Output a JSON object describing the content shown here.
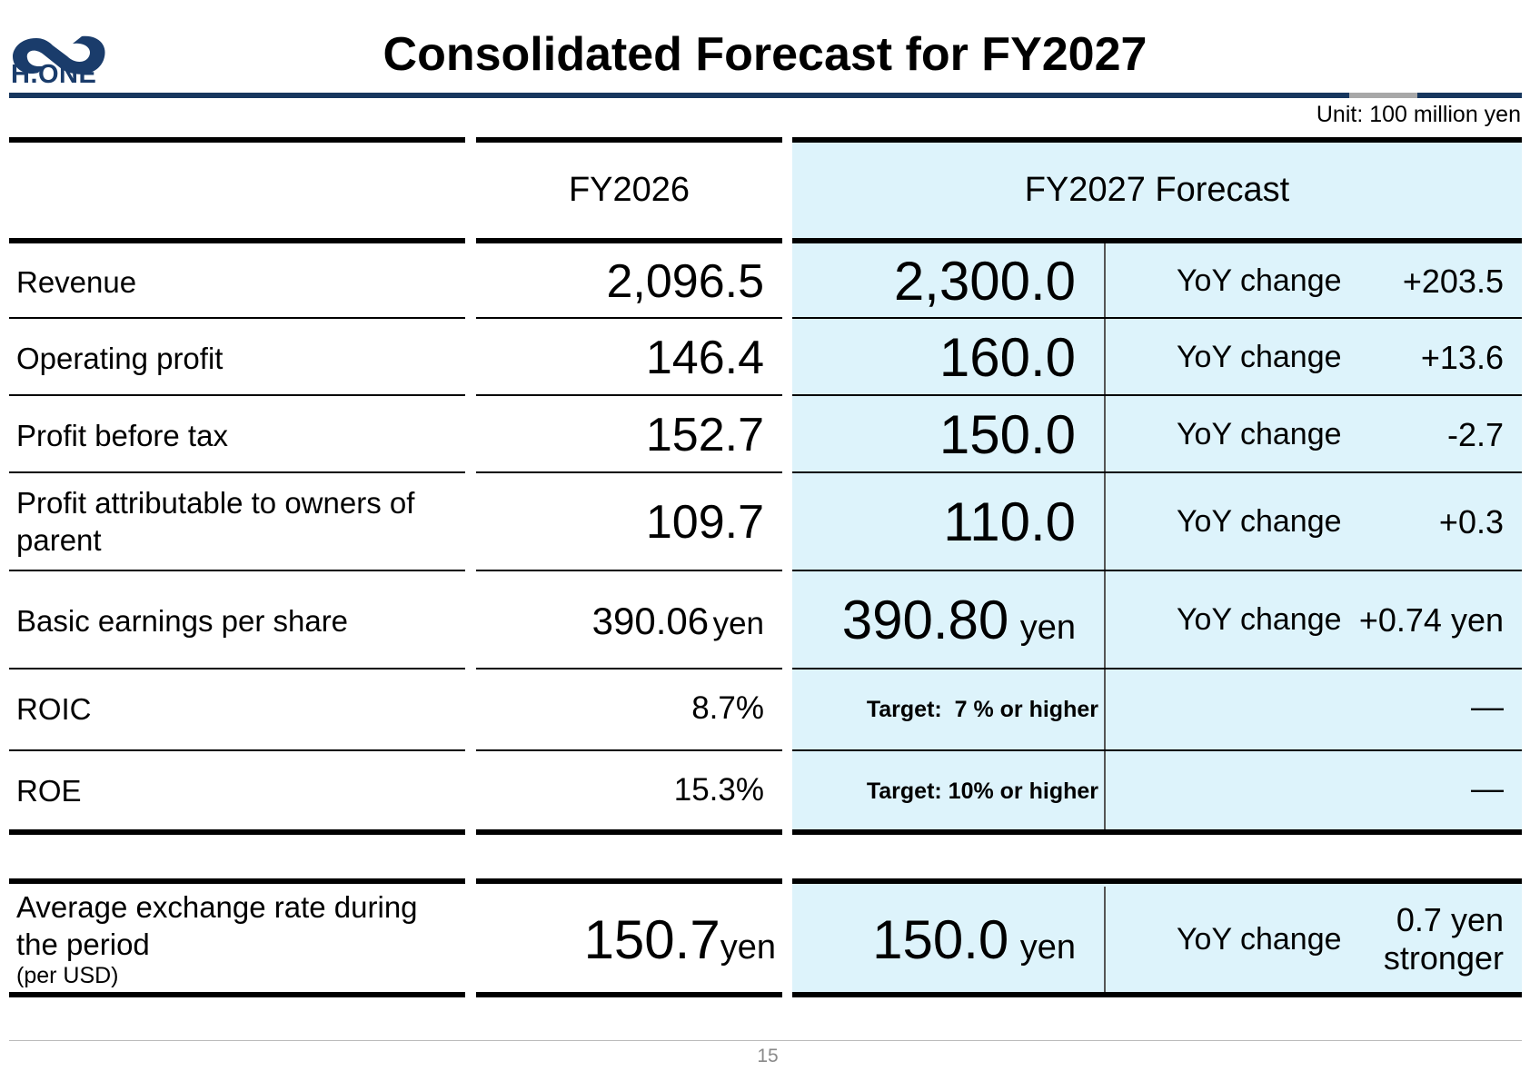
{
  "header": {
    "logo_text": "H.ONE",
    "title": "Consolidated Forecast for FY2027",
    "unit": "Unit: 100 million yen"
  },
  "columns": {
    "prior": "FY2026",
    "forecast": "FY2027 Forecast"
  },
  "rows": [
    {
      "label": "Revenue",
      "prior": "2,096.5",
      "forecast": "2,300.0",
      "yoy_label": "YoY change",
      "yoy": "+203.5"
    },
    {
      "label": "Operating profit",
      "prior": "146.4",
      "forecast": "160.0",
      "yoy_label": "YoY change",
      "yoy": "+13.6"
    },
    {
      "label": "Profit before tax",
      "prior": "152.7",
      "forecast": "150.0",
      "yoy_label": "YoY change",
      "yoy": "-2.7"
    },
    {
      "label_line1": "Profit attributable to owners of",
      "label_line2": "parent",
      "prior": "109.7",
      "forecast": "110.0",
      "yoy_label": "YoY change",
      "yoy": "+0.3"
    },
    {
      "label": "Basic earnings per share",
      "prior": "390.06",
      "prior_unit": "yen",
      "forecast": "390.80",
      "forecast_unit": "yen",
      "yoy_label": "YoY change",
      "yoy": "+0.74 yen"
    },
    {
      "label": "ROIC",
      "prior": "8.7%",
      "forecast": "Target:  7 % or higher",
      "yoy": "―"
    },
    {
      "label": "ROE",
      "prior": "15.3%",
      "forecast": "Target: 10% or higher",
      "yoy": "―"
    }
  ],
  "fx": {
    "label_line1": "Average exchange rate during",
    "label_line2": "the period",
    "label_line3": "(per USD)",
    "prior": "150.7",
    "prior_unit": "yen",
    "forecast": "150.0",
    "forecast_unit": "yen",
    "yoy_label": "YoY change",
    "yoy_line1": "0.7 yen",
    "yoy_line2": "stronger"
  },
  "footer": {
    "page": "15"
  },
  "colors": {
    "forecast_bg": "#ddf3fb",
    "title_bar": "#17375e",
    "logo": "#1a3c6b"
  }
}
